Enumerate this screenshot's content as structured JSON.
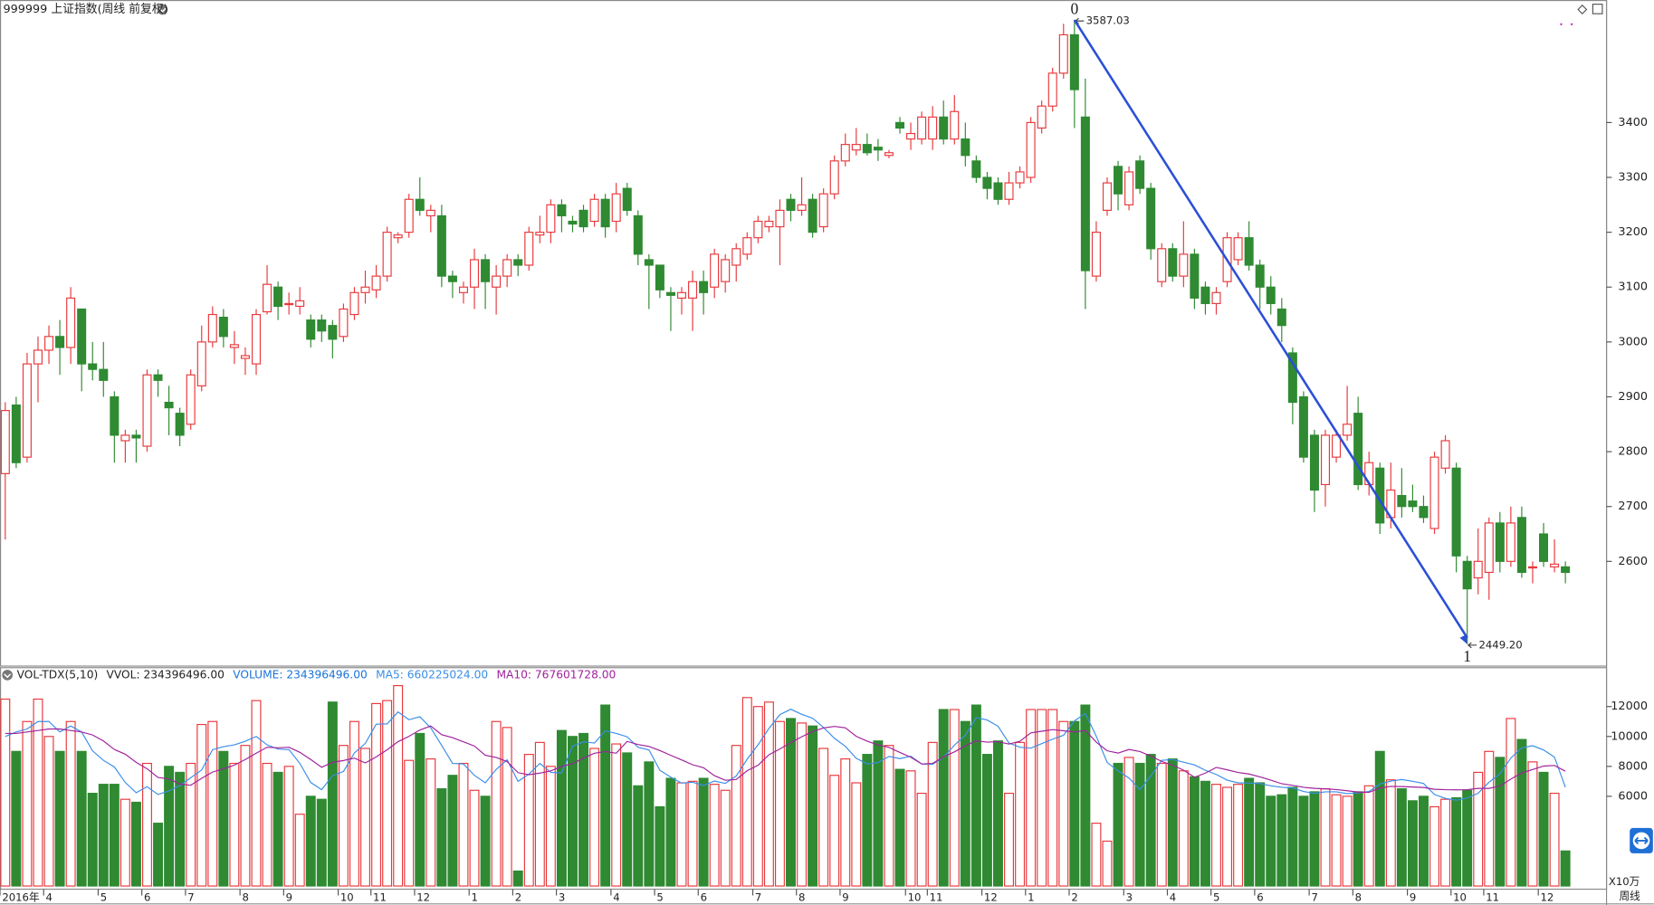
{
  "chart_data": [
    {
      "type": "candlestick",
      "title": "999999 上证指数(周线 前复权)",
      "up_color": "#e8393d",
      "down_color": "#2f8a32",
      "trend_color": "#2b4fd6",
      "ylim": [
        2412,
        3608
      ],
      "yticks": [
        2600,
        2700,
        2800,
        2900,
        3000,
        3100,
        3200,
        3300,
        3400
      ],
      "annotations": [
        {
          "text": "0",
          "price": 3587.03
        },
        {
          "text": "1",
          "price": {
            "value": 2449.2,
            "label": "2449.20"
          }
        }
      ],
      "open": [
        2760,
        2885,
        2790,
        2960,
        2985,
        3010,
        2990,
        3060,
        2960,
        2950,
        2900,
        2820,
        2830,
        2810,
        2940,
        2890,
        2870,
        2850,
        2920,
        3000,
        3045,
        2990,
        2970,
        2960,
        3055,
        3100,
        3070,
        3065,
        3040,
        3040,
        3030,
        3010,
        3050,
        3090,
        3095,
        3120,
        3190,
        3200,
        3260,
        3230,
        3230,
        3120,
        3090,
        3100,
        3150,
        3100,
        3120,
        3150,
        3140,
        3195,
        3200,
        3250,
        3220,
        3240,
        3220,
        3260,
        3220,
        3280,
        3230,
        3150,
        3140,
        3090,
        3080,
        3080,
        3110,
        3100,
        3110,
        3140,
        3160,
        3190,
        3210,
        3210,
        3260,
        3240,
        3260,
        3210,
        3270,
        3330,
        3350,
        3360,
        3355,
        3340,
        3400,
        3370,
        3370,
        3370,
        3410,
        3370,
        3370,
        3330,
        3300,
        3290,
        3260,
        3290,
        3300,
        3390,
        3430,
        3490,
        3560,
        3410,
        3120,
        3240,
        3320,
        3250,
        3330,
        3280,
        3110,
        3170,
        3120,
        3160,
        3100,
        3070,
        3110,
        3150,
        3190,
        3140,
        3100,
        3060,
        2980,
        2900,
        2830,
        2740,
        2790,
        2830,
        2870,
        2740,
        2770,
        2680,
        2720,
        2710,
        2700,
        2660,
        2770,
        2770,
        2600,
        2570,
        2580,
        2670,
        2600,
        2680,
        2590,
        2650,
        2590,
        2590
      ],
      "high": [
        2890,
        2900,
        2980,
        3010,
        3030,
        3040,
        3100,
        3060,
        3000,
        3000,
        2910,
        2840,
        2840,
        2950,
        2950,
        2920,
        2880,
        2950,
        3030,
        3065,
        3060,
        3020,
        2990,
        3060,
        3140,
        3110,
        3090,
        3100,
        3050,
        3050,
        3040,
        3070,
        3100,
        3130,
        3140,
        3210,
        3200,
        3270,
        3300,
        3250,
        3250,
        3130,
        3110,
        3170,
        3160,
        3140,
        3160,
        3160,
        3210,
        3230,
        3260,
        3260,
        3230,
        3250,
        3270,
        3270,
        3290,
        3290,
        3240,
        3160,
        3140,
        3100,
        3100,
        3130,
        3130,
        3170,
        3160,
        3180,
        3200,
        3230,
        3230,
        3260,
        3270,
        3300,
        3270,
        3280,
        3340,
        3380,
        3390,
        3380,
        3370,
        3350,
        3410,
        3400,
        3420,
        3430,
        3440,
        3450,
        3400,
        3340,
        3310,
        3300,
        3310,
        3320,
        3410,
        3440,
        3500,
        3580,
        3587.03,
        3480,
        3220,
        3300,
        3330,
        3320,
        3340,
        3290,
        3180,
        3180,
        3220,
        3170,
        3110,
        3100,
        3200,
        3200,
        3220,
        3150,
        3120,
        3080,
        2990,
        2910,
        2840,
        2840,
        2840,
        2920,
        2900,
        2800,
        2780,
        2780,
        2770,
        2740,
        2720,
        2800,
        2830,
        2780,
        2610,
        2660,
        2680,
        2690,
        2700,
        2700,
        2600,
        2670,
        2640,
        2600
      ],
      "low": [
        2640,
        2770,
        2780,
        2890,
        2960,
        2940,
        2960,
        2910,
        2930,
        2900,
        2780,
        2780,
        2780,
        2800,
        2900,
        2830,
        2810,
        2840,
        2910,
        2990,
        2990,
        2960,
        2940,
        2940,
        3050,
        3040,
        3050,
        3050,
        2990,
        3000,
        2970,
        3000,
        3040,
        3070,
        3080,
        3110,
        3180,
        3190,
        3230,
        3200,
        3100,
        3080,
        3070,
        3060,
        3060,
        3050,
        3100,
        3120,
        3130,
        3180,
        3180,
        3200,
        3200,
        3200,
        3210,
        3190,
        3200,
        3230,
        3140,
        3060,
        3080,
        3020,
        3050,
        3020,
        3050,
        3080,
        3090,
        3110,
        3150,
        3180,
        3200,
        3140,
        3220,
        3230,
        3190,
        3200,
        3260,
        3320,
        3340,
        3340,
        3330,
        3335,
        3380,
        3350,
        3360,
        3350,
        3360,
        3360,
        3320,
        3290,
        3260,
        3250,
        3250,
        3280,
        3290,
        3380,
        3420,
        3480,
        3390,
        3060,
        3110,
        3230,
        3240,
        3240,
        3270,
        3150,
        3100,
        3110,
        3100,
        3060,
        3050,
        3050,
        3100,
        3140,
        3130,
        3060,
        3050,
        3000,
        2850,
        2780,
        2690,
        2700,
        2780,
        2820,
        2730,
        2720,
        2650,
        2660,
        2680,
        2690,
        2670,
        2650,
        2760,
        2580,
        2449.2,
        2540,
        2530,
        2580,
        2590,
        2570,
        2560,
        2590,
        2580,
        2560
      ],
      "close": [
        2875,
        2780,
        2960,
        2985,
        3010,
        2990,
        3080,
        2960,
        2950,
        2930,
        2830,
        2830,
        2825,
        2940,
        2930,
        2880,
        2830,
        2940,
        3000,
        3050,
        3010,
        2995,
        2975,
        3050,
        3105,
        3065,
        3070,
        3075,
        3005,
        3020,
        3005,
        3060,
        3090,
        3100,
        3120,
        3200,
        3195,
        3260,
        3240,
        3240,
        3120,
        3110,
        3100,
        3150,
        3110,
        3120,
        3150,
        3140,
        3200,
        3200,
        3250,
        3230,
        3215,
        3210,
        3260,
        3210,
        3270,
        3240,
        3160,
        3140,
        3095,
        3085,
        3090,
        3110,
        3090,
        3160,
        3150,
        3170,
        3190,
        3220,
        3220,
        3240,
        3240,
        3250,
        3200,
        3270,
        3330,
        3360,
        3360,
        3345,
        3350,
        3345,
        3390,
        3380,
        3410,
        3410,
        3370,
        3420,
        3340,
        3300,
        3280,
        3260,
        3290,
        3310,
        3400,
        3430,
        3490,
        3560,
        3460,
        3130,
        3200,
        3290,
        3270,
        3310,
        3280,
        3170,
        3170,
        3120,
        3160,
        3080,
        3070,
        3090,
        3190,
        3190,
        3140,
        3100,
        3070,
        3030,
        2890,
        2790,
        2730,
        2830,
        2830,
        2850,
        2740,
        2780,
        2670,
        2730,
        2700,
        2700,
        2680,
        2790,
        2820,
        2610,
        2550,
        2600,
        2670,
        2600,
        2670,
        2580,
        2590,
        2600,
        2595,
        2580
      ]
    },
    {
      "type": "volume",
      "title": "VOL-TDX(5,10)",
      "header": [
        {
          "text": "VVOL: 234396496.00",
          "color": "#222222"
        },
        {
          "text": "VOLUME: 234396496.00",
          "color": "#1a73d9"
        }
      ],
      "unit_label": "X10万",
      "x_label": "周线",
      "ylim": [
        0,
        14600
      ],
      "yticks": [
        6000,
        8000,
        10000,
        12000
      ],
      "categories": [
        "2016年",
        null,
        null,
        null,
        "4",
        null,
        null,
        null,
        null,
        "5",
        null,
        null,
        null,
        "6",
        null,
        null,
        null,
        "7",
        null,
        null,
        null,
        null,
        "8",
        null,
        null,
        null,
        "9",
        null,
        null,
        null,
        null,
        "10",
        null,
        null,
        "11",
        null,
        null,
        null,
        "12",
        null,
        null,
        null,
        null,
        "1",
        null,
        null,
        null,
        "2",
        null,
        null,
        null,
        "3",
        null,
        null,
        null,
        null,
        "4",
        null,
        null,
        null,
        "5",
        null,
        null,
        null,
        "6",
        null,
        null,
        null,
        null,
        "7",
        null,
        null,
        null,
        "8",
        null,
        null,
        null,
        "9",
        null,
        null,
        null,
        null,
        null,
        "10",
        null,
        "11",
        null,
        null,
        null,
        null,
        "12",
        null,
        null,
        null,
        "1",
        null,
        null,
        null,
        "2",
        null,
        null,
        null,
        null,
        "3",
        null,
        null,
        null,
        "4",
        null,
        null,
        null,
        "5",
        null,
        null,
        null,
        "6",
        null,
        null,
        null,
        null,
        "7",
        null,
        null,
        null,
        "8",
        null,
        null,
        null,
        null,
        "9",
        null,
        null,
        null,
        "10",
        null,
        null,
        "11",
        null,
        null,
        null,
        null,
        "12",
        null,
        null
      ],
      "values": [
        12500,
        9000,
        11000,
        12500,
        10000,
        9000,
        11000,
        9000,
        6200,
        6800,
        6800,
        5800,
        5600,
        8200,
        4200,
        8000,
        7600,
        8200,
        10800,
        11000,
        9000,
        8200,
        9400,
        12400,
        8200,
        7600,
        8000,
        4800,
        6000,
        5800,
        12300,
        9400,
        11000,
        9200,
        12200,
        12400,
        13400,
        8400,
        10200,
        8500,
        6500,
        7400,
        8200,
        6400,
        6000,
        11000,
        10600,
        1000,
        8800,
        9600,
        8000,
        10400,
        10000,
        10200,
        9200,
        12100,
        9500,
        8900,
        6700,
        8300,
        5300,
        7200,
        6900,
        7000,
        7200,
        6800,
        6400,
        9400,
        12600,
        12000,
        12300,
        11000,
        11200,
        10900,
        10700,
        9200,
        7400,
        8500,
        6900,
        8800,
        9700,
        9400,
        7800,
        7700,
        6200,
        9600,
        11800,
        11800,
        11000,
        12100,
        8800,
        9700,
        6200,
        9600,
        11800,
        11800,
        11800,
        11000,
        11000,
        12100,
        4200,
        3000,
        8200,
        8600,
        8200,
        8800,
        8200,
        8500,
        7700,
        7300,
        7000,
        6800,
        6600,
        6800,
        7200,
        6900,
        6000,
        6100,
        6600,
        6000,
        6300,
        6500,
        6100,
        6000,
        6300,
        6700,
        9000,
        7100,
        6500,
        5700,
        6000,
        5300,
        5800,
        5900,
        6400,
        7600,
        9000,
        8600,
        11200,
        9800,
        8300,
        7600,
        6200,
        2344
      ],
      "series": [
        {
          "name": "MA5: 660225024.00",
          "color": "#3a8ee8",
          "values": [
            10000,
            10300,
            10500,
            11000,
            11000,
            10300,
            10700,
            10300,
            9040,
            8400,
            7960,
            6920,
            6240,
            6640,
            6120,
            6360,
            6720,
            7240,
            7760,
            9120,
            9320,
            9440,
            9680,
            10000,
            9440,
            9160,
            9120,
            8200,
            6920,
            6440,
            7380,
            7660,
            8900,
            9540,
            10820,
            10840,
            11640,
            11120,
            11320,
            10580,
            9400,
            8200,
            8160,
            7400,
            6900,
            7800,
            8440,
            7000,
            7480,
            8200,
            7600,
            7560,
            9360,
            9640,
            9560,
            10380,
            10200,
            9980,
            9280,
            9100,
            7740,
            7280,
            6880,
            6940,
            6720,
            7020,
            6860,
            7360,
            8480,
            9440,
            10540,
            11460,
            11820,
            11480,
            11220,
            10600,
            9880,
            9340,
            8540,
            8160,
            8260,
            8660,
            8520,
            8680,
            8160,
            8140,
            8620,
            9420,
            10080,
            11260,
            11100,
            10680,
            9560,
            9280,
            9220,
            9520,
            9820,
            10080,
            11040,
            11540,
            10020,
            8260,
            7700,
            7220,
            6440,
            7360,
            8400,
            8460,
            8280,
            8100,
            7740,
            7460,
            7080,
            6900,
            6880,
            6860,
            6700,
            6600,
            6560,
            6320,
            6200,
            6300,
            6300,
            6180,
            6240,
            6320,
            6820,
            7020,
            7120,
            7000,
            6860,
            6120,
            5860,
            5740,
            5880,
            6200,
            6940,
            7500,
            8560,
            9240,
            9380,
            9100,
            8620,
            6602
          ]
        },
        {
          "name": "MA10: 767601728.00",
          "color": "#a0229c",
          "values": [
            10200,
            10200,
            10300,
            10400,
            10500,
            10500,
            10400,
            10300,
            10100,
            9700,
            9130,
            8810,
            8270,
            7840,
            7260,
            7160,
            6820,
            6740,
            7200,
            7620,
            7840,
            8080,
            8460,
            8880,
            9280,
            9240,
            9280,
            8940,
            8460,
            7940,
            8270,
            8390,
            8550,
            8230,
            8630,
            9110,
            9650,
            10010,
            10430,
            10700,
            10120,
            9920,
            9640,
            9360,
            8740,
            8600,
            8320,
            7580,
            7440,
            7550,
            7700,
            8000,
            8180,
            8560,
            8880,
            8990,
            8880,
            9670,
            9460,
            9330,
            9060,
            8740,
            8430,
            8110,
            7910,
            7380,
            7070,
            7120,
            7710,
            8080,
            8780,
            9160,
            9590,
            9980,
            10330,
            10570,
            10670,
            10580,
            10010,
            9690,
            9430,
            9270,
            8930,
            8610,
            8160,
            8200,
            8640,
            8970,
            9380,
            9710,
            9620,
            9650,
            9490,
            9680,
            10240,
            10350,
            10460,
            10380,
            10300,
            10410,
            9620,
            9040,
            8890,
            9130,
            8990,
            8690,
            8330,
            8080,
            7750,
            7270,
            7550,
            7930,
            7770,
            7590,
            7490,
            7300,
            7080,
            6840,
            6730,
            6600,
            6530,
            6500,
            6450,
            6370,
            6280,
            6260,
            6560,
            6660,
            6650,
            6620,
            6590,
            6470,
            6440,
            6430,
            6440,
            6530,
            6530,
            6680,
            7150,
            7560,
            7790,
            8020,
            8060,
            7676
          ]
        }
      ]
    }
  ]
}
